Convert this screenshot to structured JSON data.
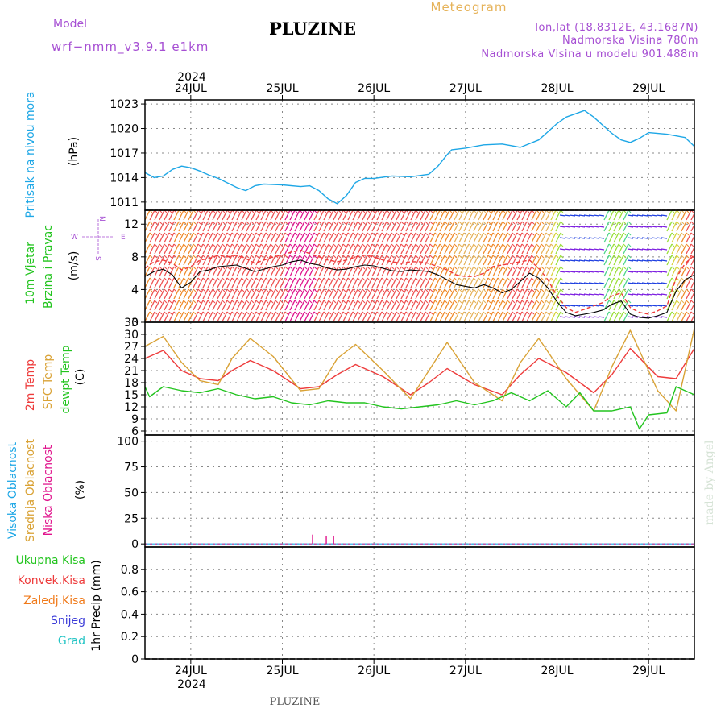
{
  "header": {
    "model_label": "Model",
    "model_name": "wrf−nmm_v3.9.1  e1km",
    "station": "PLUZINE",
    "meteogram_label": "Meteogram",
    "lonlat": "lon,lat (18.8312E, 43.1687N)",
    "altitude": "Nadmorska Visina 780m",
    "model_altitude": "Nadmorska Visina u modelu 901.488m",
    "footer_station": "PLUZINE",
    "watermark": "made by Angel"
  },
  "colors": {
    "pressure": "#1ea7e6",
    "wind_label": "#22c41e",
    "temp2m": "#ee3b3b",
    "sfc_temp": "#d9a235",
    "dewpoint": "#22c41e",
    "cloud_high": "#1ea7e6",
    "cloud_mid": "#d9a235",
    "cloud_low": "#e0138c",
    "precip_total": "#22c41e",
    "precip_conv": "#ee3b3b",
    "precip_frozen": "#f07a1a",
    "precip_snow": "#3a3ad8",
    "precip_grad": "#22c4c4",
    "header_purple": "#a64fd3",
    "header_gold": "#e6b35a"
  },
  "chart_data": [
    {
      "type": "line",
      "panel": "pressure",
      "ylabel_left": "Pritisak na nivou mora",
      "unit": "(hPa)",
      "ylim": [
        1010,
        1023.5
      ],
      "yticks": [
        "1023",
        "1020",
        "1017",
        "1014",
        "1011"
      ],
      "x_days": [
        "24JUL",
        "25JUL",
        "26JUL",
        "27JUL",
        "28JUL",
        "29JUL"
      ],
      "year": "2024",
      "x_range_days": [
        -0.5,
        5.5
      ],
      "series": [
        {
          "x": [
            -0.5,
            -0.4,
            -0.3,
            -0.2,
            -0.1,
            0.0,
            0.1,
            0.2,
            0.3,
            0.5,
            0.6,
            0.7,
            0.8,
            1.0,
            1.2,
            1.3,
            1.4,
            1.5,
            1.6,
            1.7,
            1.8,
            1.9,
            2.0,
            2.2,
            2.4,
            2.6,
            2.7,
            2.8,
            2.85,
            3.0,
            3.2,
            3.4,
            3.5,
            3.6,
            3.8,
            3.9,
            4.0,
            4.1,
            4.2,
            4.3,
            4.4,
            4.5,
            4.6,
            4.7,
            4.8,
            4.9,
            5.0,
            5.2,
            5.4,
            5.5
          ],
          "y": [
            1014.6,
            1014.0,
            1014.2,
            1015.0,
            1015.4,
            1015.2,
            1014.8,
            1014.3,
            1013.9,
            1012.8,
            1012.4,
            1013.0,
            1013.2,
            1013.1,
            1012.9,
            1013.0,
            1012.4,
            1011.4,
            1010.8,
            1011.8,
            1013.4,
            1013.9,
            1013.9,
            1014.2,
            1014.1,
            1014.4,
            1015.4,
            1016.8,
            1017.4,
            1017.6,
            1018.0,
            1018.1,
            1017.9,
            1017.7,
            1018.6,
            1019.6,
            1020.6,
            1021.4,
            1021.8,
            1022.2,
            1021.4,
            1020.4,
            1019.4,
            1018.6,
            1018.3,
            1018.8,
            1019.5,
            1019.3,
            1018.9,
            1017.8
          ]
        }
      ]
    },
    {
      "type": "line",
      "panel": "wind",
      "ylabel_lines": [
        "10m Vjetar",
        "Brzina i Pravac"
      ],
      "unit": "(m/s)",
      "ylim": [
        0,
        13.7
      ],
      "yticks": [
        "12",
        "8",
        "4",
        "0"
      ],
      "compass": {
        "n": "N",
        "s": "S",
        "w": "W",
        "e": "E"
      },
      "series": [
        {
          "x": [
            -0.5,
            -0.4,
            -0.3,
            -0.2,
            -0.1,
            0.0,
            0.1,
            0.2,
            0.3,
            0.4,
            0.5,
            0.6,
            0.7,
            0.8,
            0.9,
            1.0,
            1.1,
            1.2,
            1.3,
            1.4,
            1.5,
            1.6,
            1.7,
            1.8,
            1.9,
            2.0,
            2.1,
            2.2,
            2.3,
            2.4,
            2.5,
            2.6,
            2.7,
            2.8,
            2.9,
            3.0,
            3.1,
            3.2,
            3.3,
            3.4,
            3.5,
            3.6,
            3.7,
            3.8,
            3.9,
            4.0,
            4.1,
            4.2,
            4.3,
            4.4,
            4.5,
            4.6,
            4.7,
            4.8,
            4.9,
            5.0,
            5.1,
            5.2,
            5.3,
            5.4,
            5.5
          ],
          "y": [
            5.6,
            6.2,
            6.5,
            5.8,
            4.2,
            4.9,
            6.2,
            6.4,
            6.8,
            6.9,
            7.0,
            6.6,
            6.2,
            6.5,
            6.8,
            7.0,
            7.4,
            7.6,
            7.2,
            7.0,
            6.6,
            6.4,
            6.5,
            6.8,
            7.0,
            6.9,
            6.6,
            6.3,
            6.2,
            6.4,
            6.3,
            6.2,
            5.8,
            5.2,
            4.6,
            4.4,
            4.2,
            4.6,
            4.2,
            3.6,
            4.0,
            5.0,
            6.0,
            5.4,
            4.2,
            2.5,
            1.2,
            0.8,
            1.0,
            1.2,
            1.5,
            2.2,
            2.6,
            1.0,
            0.6,
            0.5,
            0.8,
            1.2,
            3.8,
            5.2,
            5.8
          ]
        },
        {
          "x": [
            -0.5,
            -0.4,
            -0.3,
            -0.2,
            -0.1,
            0.0,
            0.1,
            0.2,
            0.3,
            0.4,
            0.5,
            0.6,
            0.7,
            0.8,
            0.9,
            1.0,
            1.1,
            1.2,
            1.3,
            1.4,
            1.5,
            1.6,
            1.7,
            1.8,
            1.9,
            2.0,
            2.1,
            2.2,
            2.3,
            2.4,
            2.5,
            2.6,
            2.7,
            2.8,
            2.9,
            3.0,
            3.1,
            3.2,
            3.3,
            3.4,
            3.5,
            3.6,
            3.7,
            3.8,
            3.9,
            4.0,
            4.1,
            4.2,
            4.3,
            4.4,
            4.5,
            4.6,
            4.7,
            4.8,
            4.9,
            5.0,
            5.1,
            5.2,
            5.3,
            5.4,
            5.5
          ],
          "y": [
            6.6,
            7.4,
            7.6,
            7.2,
            6.4,
            6.8,
            7.6,
            7.8,
            8.2,
            8.0,
            8.2,
            7.8,
            7.2,
            7.6,
            8.0,
            8.2,
            8.6,
            8.8,
            8.4,
            8.0,
            7.6,
            7.4,
            7.6,
            8.0,
            8.2,
            8.0,
            7.6,
            7.4,
            7.2,
            7.4,
            7.4,
            7.2,
            6.8,
            6.4,
            5.8,
            5.6,
            5.6,
            6.0,
            6.8,
            7.0,
            7.2,
            7.4,
            7.6,
            6.6,
            5.2,
            3.2,
            1.8,
            1.2,
            1.6,
            2.0,
            2.4,
            3.2,
            3.6,
            1.8,
            1.2,
            1.0,
            1.4,
            2.0,
            5.4,
            7.2,
            8.2
          ]
        }
      ]
    },
    {
      "type": "line",
      "panel": "temperature",
      "ylabel_lines": [
        "2m Temp",
        "SFC Temp",
        "dewpt Temp"
      ],
      "unit": "(C)",
      "ylim": [
        5,
        33
      ],
      "yticks": [
        "33",
        "30",
        "27",
        "24",
        "21",
        "18",
        "15",
        "12",
        "9",
        "6"
      ],
      "series": [
        {
          "x": [
            -0.5,
            -0.3,
            -0.1,
            0.1,
            0.3,
            0.45,
            0.65,
            0.9,
            1.2,
            1.4,
            1.6,
            1.8,
            2.1,
            2.4,
            2.6,
            2.8,
            3.1,
            3.4,
            3.6,
            3.8,
            4.1,
            4.4,
            4.6,
            4.8,
            5.1,
            5.3,
            5.5
          ],
          "y": [
            24.0,
            26.0,
            21.0,
            19.0,
            18.5,
            21.0,
            23.5,
            21.0,
            16.5,
            17.0,
            20.0,
            22.5,
            19.5,
            15.0,
            18.0,
            21.5,
            17.5,
            15.0,
            20.0,
            24.0,
            20.5,
            15.5,
            20.0,
            26.5,
            19.5,
            19.0,
            26.5
          ]
        },
        {
          "x": [
            -0.5,
            -0.3,
            -0.1,
            0.1,
            0.3,
            0.45,
            0.65,
            0.9,
            1.2,
            1.4,
            1.6,
            1.8,
            2.1,
            2.4,
            2.6,
            2.8,
            3.1,
            3.4,
            3.6,
            3.8,
            4.1,
            4.4,
            4.6,
            4.8,
            5.1,
            5.3,
            5.5
          ],
          "y": [
            27.0,
            29.5,
            23.0,
            18.5,
            17.5,
            24.0,
            29.0,
            24.5,
            16.0,
            16.5,
            24.0,
            27.5,
            21.0,
            14.0,
            21.0,
            28.0,
            18.0,
            13.5,
            23.0,
            29.0,
            19.0,
            11.0,
            22.0,
            31.0,
            16.0,
            11.0,
            31.5
          ]
        },
        {
          "x": [
            -0.5,
            -0.45,
            -0.3,
            -0.1,
            0.1,
            0.3,
            0.5,
            0.7,
            0.9,
            1.1,
            1.3,
            1.5,
            1.7,
            1.9,
            2.1,
            2.3,
            2.5,
            2.7,
            2.9,
            3.1,
            3.3,
            3.5,
            3.7,
            3.9,
            4.1,
            4.25,
            4.4,
            4.6,
            4.8,
            4.9,
            5.0,
            5.2,
            5.3,
            5.4,
            5.5
          ],
          "y": [
            17.0,
            14.5,
            17.0,
            16.0,
            15.5,
            16.5,
            15.0,
            14.0,
            14.5,
            13.0,
            12.5,
            13.5,
            13.0,
            13.0,
            12.0,
            11.5,
            12.0,
            12.5,
            13.5,
            12.5,
            13.5,
            15.5,
            13.5,
            16.0,
            12.0,
            15.5,
            11.0,
            11.0,
            12.0,
            6.5,
            10.0,
            10.5,
            17.0,
            16.0,
            15.0
          ]
        }
      ]
    },
    {
      "type": "bar",
      "panel": "clouds",
      "ylabel_lines": [
        "Visoka Oblacnost",
        "Srednja Oblacnost",
        "Niska Oblacnost"
      ],
      "unit": "(%)",
      "ylim": [
        -3,
        106
      ],
      "yticks": [
        "100",
        "75",
        "50",
        "25",
        "0"
      ],
      "series": [
        {
          "name": "Niska Oblacnost",
          "x": [
            1.33,
            1.48,
            1.56
          ],
          "values": [
            9,
            8,
            8
          ]
        }
      ]
    },
    {
      "type": "bar",
      "panel": "precip",
      "legend": [
        "Ukupna  Kisa",
        "Konvek.Kisa",
        "Zaledj.Kisa",
        "Snijeg",
        "Grad"
      ],
      "ylabel": "1hr Precip (mm)",
      "ylim": [
        0,
        1.0
      ],
      "yticks": [
        "0.8",
        "0.6",
        "0.4",
        "0.2",
        "0"
      ],
      "series": []
    }
  ]
}
